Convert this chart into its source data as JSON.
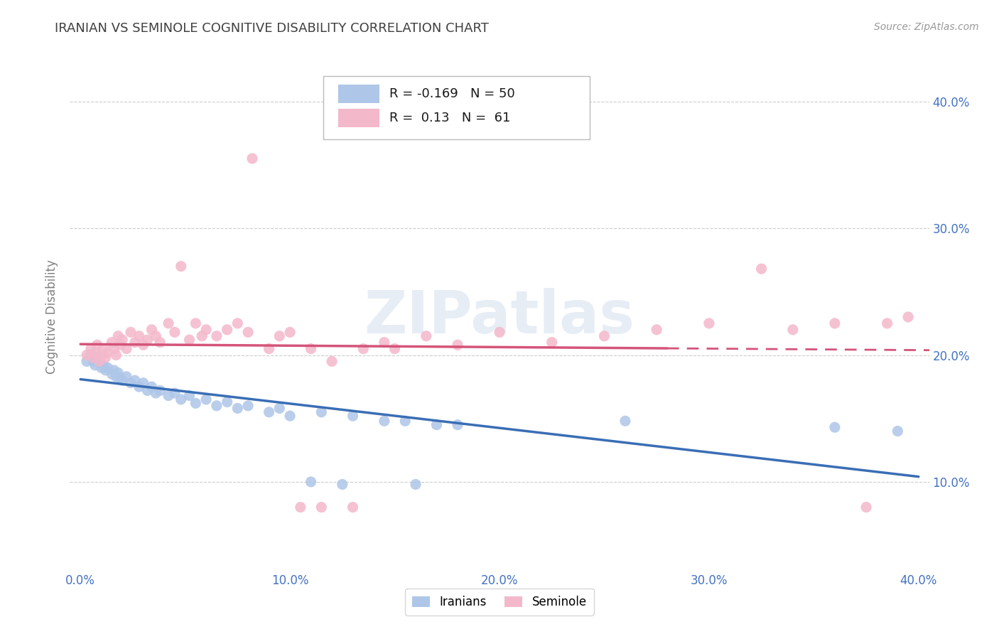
{
  "title": "IRANIAN VS SEMINOLE COGNITIVE DISABILITY CORRELATION CHART",
  "source": "Source: ZipAtlas.com",
  "ylabel": "Cognitive Disability",
  "xlim": [
    -0.005,
    0.405
  ],
  "ylim": [
    0.03,
    0.43
  ],
  "x_ticks": [
    0.0,
    0.1,
    0.2,
    0.3,
    0.4
  ],
  "y_ticks": [
    0.1,
    0.2,
    0.3,
    0.4
  ],
  "x_tick_labels": [
    "0.0%",
    "10.0%",
    "20.0%",
    "30.0%",
    "40.0%"
  ],
  "y_tick_labels": [
    "10.0%",
    "20.0%",
    "30.0%",
    "40.0%"
  ],
  "iranians_color": "#aec6e8",
  "seminole_color": "#f4b8cb",
  "iranians_line_color": "#3a6eb5",
  "seminole_line_color": "#d4547a",
  "R_iranians": -0.169,
  "N_iranians": 50,
  "R_seminole": 0.13,
  "N_seminole": 61,
  "watermark": "ZIPatlas",
  "iranians_scatter": [
    [
      0.003,
      0.195
    ],
    [
      0.005,
      0.2
    ],
    [
      0.006,
      0.195
    ],
    [
      0.007,
      0.192
    ],
    [
      0.008,
      0.198
    ],
    [
      0.009,
      0.195
    ],
    [
      0.01,
      0.19
    ],
    [
      0.011,
      0.192
    ],
    [
      0.012,
      0.188
    ],
    [
      0.013,
      0.19
    ],
    [
      0.015,
      0.185
    ],
    [
      0.016,
      0.188
    ],
    [
      0.017,
      0.183
    ],
    [
      0.018,
      0.186
    ],
    [
      0.019,
      0.182
    ],
    [
      0.02,
      0.18
    ],
    [
      0.022,
      0.183
    ],
    [
      0.024,
      0.178
    ],
    [
      0.026,
      0.18
    ],
    [
      0.028,
      0.175
    ],
    [
      0.03,
      0.178
    ],
    [
      0.032,
      0.172
    ],
    [
      0.034,
      0.175
    ],
    [
      0.036,
      0.17
    ],
    [
      0.038,
      0.172
    ],
    [
      0.042,
      0.168
    ],
    [
      0.045,
      0.17
    ],
    [
      0.048,
      0.165
    ],
    [
      0.052,
      0.168
    ],
    [
      0.055,
      0.162
    ],
    [
      0.06,
      0.165
    ],
    [
      0.065,
      0.16
    ],
    [
      0.07,
      0.163
    ],
    [
      0.075,
      0.158
    ],
    [
      0.08,
      0.16
    ],
    [
      0.09,
      0.155
    ],
    [
      0.095,
      0.158
    ],
    [
      0.1,
      0.152
    ],
    [
      0.11,
      0.1
    ],
    [
      0.115,
      0.155
    ],
    [
      0.125,
      0.098
    ],
    [
      0.13,
      0.152
    ],
    [
      0.145,
      0.148
    ],
    [
      0.155,
      0.148
    ],
    [
      0.16,
      0.098
    ],
    [
      0.17,
      0.145
    ],
    [
      0.18,
      0.145
    ],
    [
      0.26,
      0.148
    ],
    [
      0.36,
      0.143
    ],
    [
      0.39,
      0.14
    ]
  ],
  "seminole_scatter": [
    [
      0.003,
      0.2
    ],
    [
      0.005,
      0.205
    ],
    [
      0.006,
      0.198
    ],
    [
      0.007,
      0.202
    ],
    [
      0.008,
      0.208
    ],
    [
      0.009,
      0.195
    ],
    [
      0.01,
      0.2
    ],
    [
      0.011,
      0.205
    ],
    [
      0.012,
      0.198
    ],
    [
      0.013,
      0.202
    ],
    [
      0.015,
      0.21
    ],
    [
      0.016,
      0.205
    ],
    [
      0.017,
      0.2
    ],
    [
      0.018,
      0.215
    ],
    [
      0.019,
      0.208
    ],
    [
      0.02,
      0.212
    ],
    [
      0.022,
      0.205
    ],
    [
      0.024,
      0.218
    ],
    [
      0.026,
      0.21
    ],
    [
      0.028,
      0.215
    ],
    [
      0.03,
      0.208
    ],
    [
      0.032,
      0.212
    ],
    [
      0.034,
      0.22
    ],
    [
      0.036,
      0.215
    ],
    [
      0.038,
      0.21
    ],
    [
      0.042,
      0.225
    ],
    [
      0.045,
      0.218
    ],
    [
      0.048,
      0.27
    ],
    [
      0.052,
      0.212
    ],
    [
      0.055,
      0.225
    ],
    [
      0.058,
      0.215
    ],
    [
      0.06,
      0.22
    ],
    [
      0.065,
      0.215
    ],
    [
      0.07,
      0.22
    ],
    [
      0.075,
      0.225
    ],
    [
      0.08,
      0.218
    ],
    [
      0.082,
      0.355
    ],
    [
      0.09,
      0.205
    ],
    [
      0.095,
      0.215
    ],
    [
      0.1,
      0.218
    ],
    [
      0.105,
      0.08
    ],
    [
      0.11,
      0.205
    ],
    [
      0.115,
      0.08
    ],
    [
      0.12,
      0.195
    ],
    [
      0.13,
      0.08
    ],
    [
      0.135,
      0.205
    ],
    [
      0.145,
      0.21
    ],
    [
      0.15,
      0.205
    ],
    [
      0.165,
      0.215
    ],
    [
      0.18,
      0.208
    ],
    [
      0.2,
      0.218
    ],
    [
      0.225,
      0.21
    ],
    [
      0.25,
      0.215
    ],
    [
      0.275,
      0.22
    ],
    [
      0.3,
      0.225
    ],
    [
      0.325,
      0.268
    ],
    [
      0.34,
      0.22
    ],
    [
      0.36,
      0.225
    ],
    [
      0.375,
      0.08
    ],
    [
      0.385,
      0.225
    ],
    [
      0.395,
      0.23
    ]
  ],
  "background_color": "#ffffff",
  "grid_color": "#cccccc",
  "title_color": "#404040",
  "axis_label_color": "#808080",
  "tick_label_color": "#4472c4"
}
